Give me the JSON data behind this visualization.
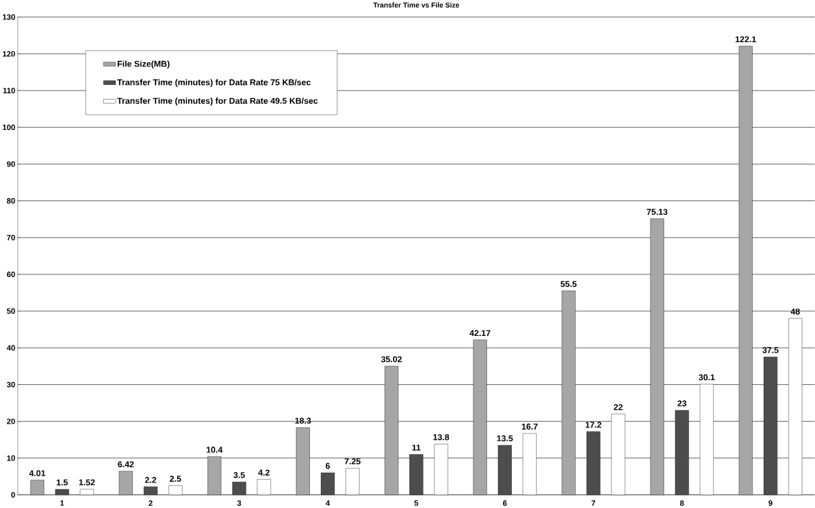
{
  "chart_data": {
    "type": "bar",
    "title": "Transfer Time vs File Size",
    "categories": [
      "1",
      "2",
      "3",
      "4",
      "5",
      "6",
      "7",
      "8",
      "9"
    ],
    "series": [
      {
        "name": "File Size(MB)",
        "color": "#a6a6a6",
        "values": [
          4.01,
          6.42,
          10.4,
          18.3,
          35.02,
          42.17,
          55.5,
          75.13,
          122.1
        ]
      },
      {
        "name": "Transfer Time (minutes) for Data Rate 75 KB/sec",
        "color": "#4d4d4d",
        "values": [
          1.5,
          2.2,
          3.5,
          6,
          11,
          13.5,
          17.2,
          23,
          37.5
        ]
      },
      {
        "name": "Transfer Time (minutes) for Data Rate 49.5 KB/sec",
        "color": "#ffffff",
        "values": [
          1.52,
          2.5,
          4.2,
          7.25,
          13.8,
          16.7,
          22,
          30.1,
          48
        ]
      }
    ],
    "ylim": [
      0,
      130
    ],
    "yticks": [
      0,
      10,
      20,
      30,
      40,
      50,
      60,
      70,
      80,
      90,
      100,
      110,
      120,
      130
    ],
    "grid": "y",
    "legend": "top left",
    "data_labels": true
  }
}
